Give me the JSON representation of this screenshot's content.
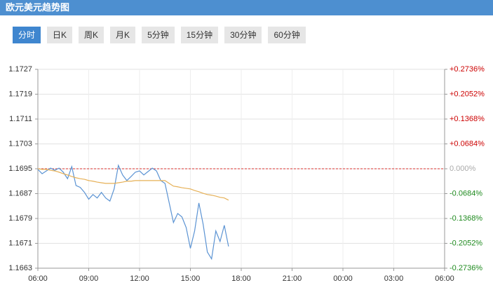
{
  "header": {
    "title": "欧元美元趋势图"
  },
  "tabs": {
    "items": [
      "分时",
      "日K",
      "周K",
      "月K",
      "5分钟",
      "15分钟",
      "30分钟",
      "60分钟"
    ],
    "active": 0
  },
  "chart_data": {
    "type": "line",
    "x": [
      "06:00",
      "06:15",
      "06:30",
      "06:45",
      "07:00",
      "07:15",
      "07:30",
      "07:45",
      "08:00",
      "08:15",
      "08:30",
      "08:45",
      "09:00",
      "09:15",
      "09:30",
      "09:45",
      "10:00",
      "10:15",
      "10:30",
      "10:45",
      "11:00",
      "11:15",
      "11:30",
      "11:45",
      "12:00",
      "12:15",
      "12:30",
      "12:45",
      "13:00",
      "13:15",
      "13:30",
      "13:45",
      "14:00",
      "14:15",
      "14:30",
      "14:45",
      "15:00",
      "15:15",
      "15:30",
      "15:45",
      "16:00",
      "16:15",
      "16:30",
      "16:45",
      "17:00",
      "17:15"
    ],
    "series": [
      {
        "color": "#5b93d3",
        "values": [
          1.16948,
          1.16934,
          1.16943,
          1.16952,
          1.16945,
          1.16952,
          1.16939,
          1.16918,
          1.16957,
          1.16896,
          1.1689,
          1.16874,
          1.16852,
          1.16867,
          1.16856,
          1.16874,
          1.16856,
          1.16846,
          1.16885,
          1.16961,
          1.1693,
          1.16912,
          1.16925,
          1.16939,
          1.16943,
          1.1693,
          1.16941,
          1.16952,
          1.16943,
          1.16912,
          1.16903,
          1.1684,
          1.16777,
          1.16806,
          1.16795,
          1.16761,
          1.16694,
          1.1675,
          1.1684,
          1.16772,
          1.16682,
          1.1666,
          1.1675,
          1.16716,
          1.16768,
          1.167
        ]
      },
      {
        "color": "#e6b056",
        "values": [
          1.1695,
          1.16948,
          1.16948,
          1.16945,
          1.16943,
          1.16939,
          1.16934,
          1.1693,
          1.16925,
          1.16921,
          1.16918,
          1.16916,
          1.16912,
          1.1691,
          1.16907,
          1.16905,
          1.16903,
          1.16903,
          1.16903,
          1.16905,
          1.16907,
          1.1691,
          1.1691,
          1.16912,
          1.16912,
          1.16912,
          1.16912,
          1.16912,
          1.16912,
          1.16912,
          1.16912,
          1.16903,
          1.16894,
          1.16892,
          1.16889,
          1.16887,
          1.16885,
          1.1688,
          1.16876,
          1.16871,
          1.16867,
          1.16865,
          1.16862,
          1.16858,
          1.16856,
          1.16849
        ]
      }
    ],
    "xticks": [
      "06:00",
      "09:00",
      "12:00",
      "15:00",
      "18:00",
      "21:00",
      "00:00",
      "03:00",
      "06:00"
    ],
    "ylim": [
      1.1663,
      1.1727
    ],
    "yticks": [
      1.1727,
      1.1719,
      1.1711,
      1.1703,
      1.1695,
      1.1687,
      1.1679,
      1.1671,
      1.1663
    ],
    "y2lim": [
      -0.2736,
      0.2736
    ],
    "y2ticks": [
      {
        "value": 0.2736,
        "label": "+0.2736%"
      },
      {
        "value": 0.2052,
        "label": "+0.2052%"
      },
      {
        "value": 0.1368,
        "label": "+0.1368%"
      },
      {
        "value": 0.0684,
        "label": "+0.0684%"
      },
      {
        "value": 0,
        "label": "0.000%"
      },
      {
        "value": -0.0684,
        "label": "-0.0684%"
      },
      {
        "value": -0.1368,
        "label": "-0.1368%"
      },
      {
        "value": -0.2052,
        "label": "-0.2052%"
      },
      {
        "value": -0.2736,
        "label": "-0.2736%"
      }
    ],
    "y2_colors": {
      "positive": "#cc0000",
      "zero": "#aaaaaa",
      "negative": "#1f8a1f"
    },
    "reference_line": {
      "value": 1.1695,
      "color": "#d9302c"
    },
    "grid": true
  }
}
